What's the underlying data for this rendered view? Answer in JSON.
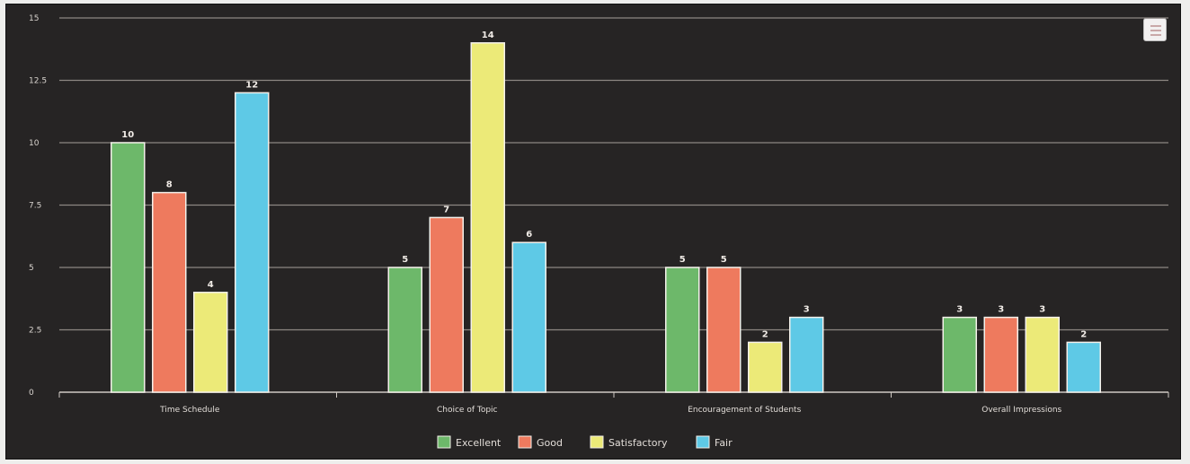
{
  "chart_data": {
    "type": "bar",
    "categories": [
      "Time Schedule",
      "Choice of Topic",
      "Encouragement of Students",
      "Overall Impressions"
    ],
    "series": [
      {
        "name": "Excellent",
        "color": "#6db86a",
        "values": [
          10,
          5,
          5,
          3
        ]
      },
      {
        "name": "Good",
        "color": "#ee7a5e",
        "values": [
          8,
          7,
          5,
          3
        ]
      },
      {
        "name": "Satisfactory",
        "color": "#ecea78",
        "values": [
          4,
          14,
          2,
          3
        ]
      },
      {
        "name": "Fair",
        "color": "#5ec9e6",
        "values": [
          12,
          6,
          3,
          2
        ]
      }
    ],
    "y_ticks": [
      "0",
      "2.5",
      "5",
      "7.5",
      "10",
      "12.5",
      "15"
    ],
    "ylim": [
      0,
      15
    ],
    "grid": true,
    "legend_position": "bottom-center",
    "background": "#262424"
  },
  "menu_icon": "hamburger-menu-icon"
}
